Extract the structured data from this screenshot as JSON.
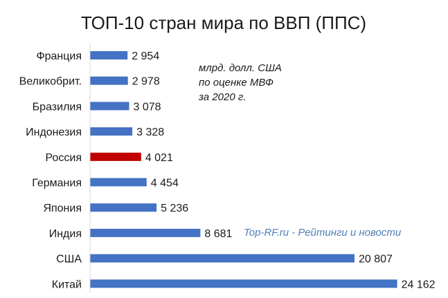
{
  "chart_data": {
    "type": "bar",
    "orientation": "horizontal",
    "title": "ТОП-10 стран мира по ВВП (ППС)",
    "xlabel": "",
    "ylabel": "",
    "xlim": [
      0,
      25000
    ],
    "grid": false,
    "categories": [
      "Франция",
      "Великобрит.",
      "Бразилия",
      "Индонезия",
      "Россия",
      "Германия",
      "Япония",
      "Индия",
      "США",
      "Китай"
    ],
    "values": [
      2954,
      2978,
      3078,
      3328,
      4021,
      4454,
      5236,
      8681,
      20807,
      24162
    ],
    "value_labels": [
      "2 954",
      "2 978",
      "3 078",
      "3 328",
      "4 021",
      "4 454",
      "5 236",
      "8 681",
      "20 807",
      "24 162"
    ],
    "colors": [
      "#4472c4",
      "#4472c4",
      "#4472c4",
      "#4472c4",
      "#c00000",
      "#4472c4",
      "#4472c4",
      "#4472c4",
      "#4472c4",
      "#4472c4"
    ],
    "annotation": [
      "млрд. долл. США",
      "по оценке МВФ",
      "за 2020 г."
    ],
    "watermark": "Top-RF.ru - Рейтинги и новости"
  }
}
